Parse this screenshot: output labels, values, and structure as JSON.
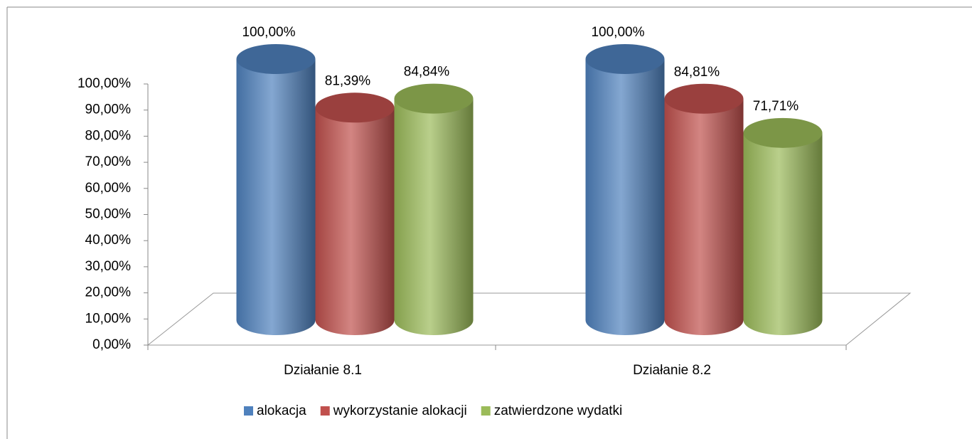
{
  "chart_data": {
    "type": "cylinder",
    "categories": [
      "Działanie 8.1",
      "Działanie 8.2"
    ],
    "series": [
      {
        "name": "alokacja",
        "color": "#4f81bd",
        "values": [
          100,
          100
        ],
        "value_labels": [
          "100,00%",
          "100,00%"
        ]
      },
      {
        "name": "wykorzystanie alokacji",
        "color": "#c0504d",
        "values": [
          81.39,
          84.81
        ],
        "value_labels": [
          "81,39%",
          "84,81%"
        ]
      },
      {
        "name": "zatwierdzone wydatki",
        "color": "#9bbb59",
        "values": [
          84.84,
          71.71
        ],
        "value_labels": [
          "84,84%",
          "71,71%"
        ]
      }
    ],
    "ylim": [
      0,
      100
    ],
    "yticks": [
      {
        "value": 0,
        "label": "0,00%"
      },
      {
        "value": 10,
        "label": "10,00%"
      },
      {
        "value": 20,
        "label": "20,00%"
      },
      {
        "value": 30,
        "label": "30,00%"
      },
      {
        "value": 40,
        "label": "40,00%"
      },
      {
        "value": 50,
        "label": "50,00%"
      },
      {
        "value": 60,
        "label": "60,00%"
      },
      {
        "value": 70,
        "label": "70,00%"
      },
      {
        "value": 80,
        "label": "80,00%"
      },
      {
        "value": 90,
        "label": "90,00%"
      },
      {
        "value": 100,
        "label": "100,00%"
      }
    ],
    "legend": "bottom"
  }
}
